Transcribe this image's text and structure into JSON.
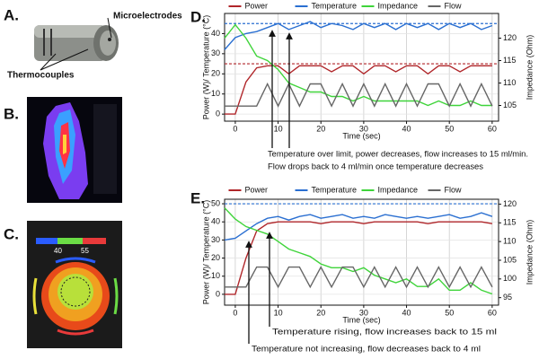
{
  "figure": {
    "panel_labels": [
      "A.",
      "B.",
      "C."
    ],
    "callouts": [
      "Microelectrodes",
      "Thermocouples"
    ],
    "scale_labels": [
      "40",
      "55"
    ]
  },
  "chart_data": [
    {
      "type": "line",
      "panel_label": "D.",
      "xlabel": "Time (sec)",
      "ylabel": "Power (W)/ Temperature (°C)",
      "y2label": "Impedance (Ohm)",
      "xlim": [
        -2.5,
        61.5
      ],
      "xticks": [
        0,
        10,
        20,
        30,
        40,
        50,
        60
      ],
      "ylim": [
        -3.5,
        50
      ],
      "yticks": [
        0,
        10,
        20,
        30,
        40
      ],
      "y2lim": [
        101.5,
        125.5
      ],
      "y2ticks": [
        105,
        110,
        115,
        120
      ],
      "grid": true,
      "legend": "top",
      "x": [
        -2.5,
        0,
        2.5,
        5,
        7.5,
        10,
        12.5,
        15,
        17.5,
        20,
        22.5,
        25,
        27.5,
        30,
        32.5,
        35,
        37.5,
        40,
        42.5,
        45,
        47.5,
        50,
        52.5,
        55,
        57.5,
        60
      ],
      "series": [
        {
          "name": "Power",
          "color": "#b0262a",
          "values": [
            0,
            0,
            16,
            23,
            24,
            24,
            20,
            24,
            24,
            24,
            21,
            24,
            24,
            20,
            24,
            24,
            21,
            24,
            24,
            20,
            24,
            24,
            21,
            24,
            24,
            24
          ]
        },
        {
          "name": "Temperature",
          "color": "#2a6fd1",
          "values": [
            32,
            38,
            40,
            41,
            43,
            45,
            42,
            44,
            46,
            43,
            45,
            44,
            42,
            45,
            43,
            45,
            42,
            45,
            43,
            45,
            42,
            45,
            43,
            45,
            42,
            44
          ]
        },
        {
          "name": "Impedance",
          "color": "#3fd43a",
          "axis": "y2",
          "values": [
            120,
            123,
            120,
            116,
            115,
            113,
            110,
            109,
            108,
            108,
            107,
            107,
            106,
            107,
            106,
            106,
            106,
            106,
            106,
            105,
            106,
            105,
            105,
            106,
            105,
            105
          ]
        },
        {
          "name": "Flow",
          "color": "#666666",
          "values": [
            4,
            4,
            4,
            4,
            15,
            4,
            15,
            4,
            15,
            15,
            4,
            15,
            4,
            15,
            4,
            15,
            4,
            15,
            4,
            15,
            15,
            4,
            15,
            4,
            15,
            4
          ]
        }
      ],
      "reference_lines": [
        {
          "value": 45,
          "color": "#2a6fd1"
        },
        {
          "value": 25,
          "color": "#b0262a"
        }
      ],
      "annotations": [
        "Temperature over limit, power decreases, flow increases to 15 ml/min.",
        "Flow drops back to 4 ml/min once temperature decreases"
      ]
    },
    {
      "type": "line",
      "panel_label": "E.",
      "xlabel": "Time (sec)",
      "ylabel": "Power (W)/ Temperature (°C)",
      "y2label": "Impedance (Ohm)",
      "xlim": [
        -2.5,
        61.5
      ],
      "xticks": [
        0,
        10,
        20,
        30,
        40,
        50,
        60
      ],
      "ylim": [
        -6,
        52.5
      ],
      "yticks": [
        0,
        10,
        20,
        30,
        40,
        50
      ],
      "y2lim": [
        93,
        121.3
      ],
      "y2ticks": [
        95,
        100,
        105,
        110,
        115,
        120
      ],
      "grid": true,
      "legend": "top",
      "x": [
        -2.5,
        0,
        2.5,
        5,
        7.5,
        10,
        12.5,
        15,
        17.5,
        20,
        22.5,
        25,
        27.5,
        30,
        32.5,
        35,
        37.5,
        40,
        42.5,
        45,
        47.5,
        50,
        52.5,
        55,
        57.5,
        60
      ],
      "series": [
        {
          "name": "Power",
          "color": "#b0262a",
          "values": [
            0,
            0,
            20,
            35,
            39,
            40,
            40,
            40,
            40,
            39,
            40,
            40,
            40,
            39,
            40,
            40,
            40,
            40,
            40,
            39,
            40,
            40,
            40,
            40,
            40,
            39
          ]
        },
        {
          "name": "Temperature",
          "color": "#2a6fd1",
          "values": [
            30,
            31,
            35,
            39,
            42,
            43,
            41,
            43,
            44,
            42,
            43,
            44,
            42,
            43,
            42,
            44,
            43,
            42,
            43,
            42,
            43,
            44,
            42,
            43,
            45,
            43
          ]
        },
        {
          "name": "Impedance",
          "color": "#3fd43a",
          "axis": "y2",
          "values": [
            119,
            116,
            114,
            113,
            112,
            110,
            108,
            107,
            106,
            104,
            103,
            103,
            102,
            103,
            101,
            100,
            99,
            100,
            98,
            98,
            100,
            97,
            97,
            99,
            97,
            96
          ]
        },
        {
          "name": "Flow",
          "color": "#666666",
          "values": [
            4,
            4,
            4,
            15,
            15,
            4,
            15,
            15,
            4,
            15,
            4,
            15,
            15,
            4,
            15,
            4,
            15,
            4,
            15,
            4,
            15,
            4,
            15,
            4,
            15,
            4
          ]
        }
      ],
      "reference_lines": [
        {
          "value": 50,
          "color": "#2a6fd1"
        }
      ],
      "annotations": [
        "Temperature rising, flow increases back to 15 ml",
        "Temperature not increasing, flow decreases back to 4 ml"
      ]
    }
  ]
}
